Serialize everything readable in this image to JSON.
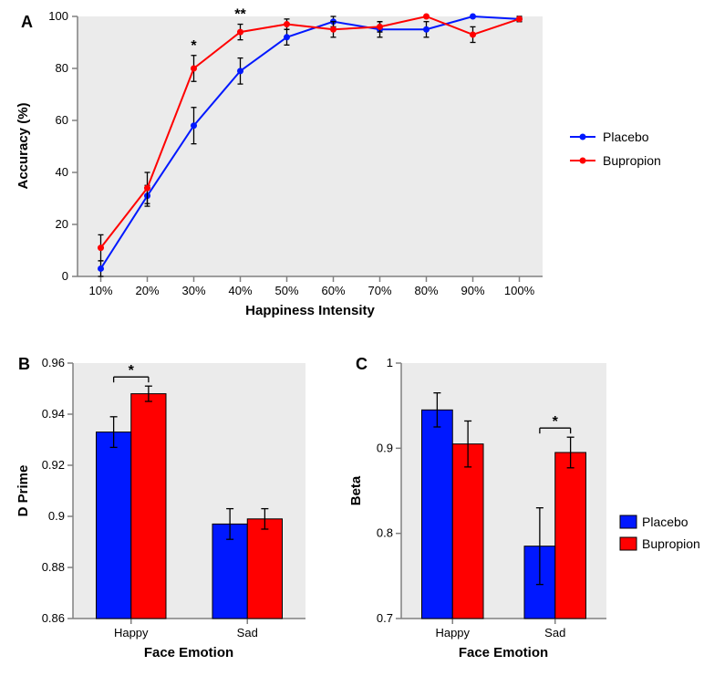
{
  "colors": {
    "placebo": "#0018ff",
    "bupropion": "#ff0000",
    "error_bar": "#000000",
    "axis": "#808080",
    "plot_bg": "#ebebeb",
    "page_bg": "#ffffff",
    "text": "#000000"
  },
  "panelA": {
    "letter": "A",
    "type": "line",
    "x_label": "Happiness Intensity",
    "y_label": "Accuracy (%)",
    "x_categories": [
      "10%",
      "20%",
      "30%",
      "40%",
      "50%",
      "60%",
      "70%",
      "80%",
      "90%",
      "100%"
    ],
    "y_lim": [
      0,
      100
    ],
    "y_ticks": [
      0,
      20,
      40,
      60,
      80,
      100
    ],
    "label_fontsize": 15,
    "tick_fontsize": 13,
    "marker_radius": 3.5,
    "line_width": 2,
    "series": [
      {
        "name": "Placebo",
        "color": "#0018ff",
        "y": [
          3,
          31,
          58,
          79,
          92,
          98,
          95,
          95,
          100,
          99
        ],
        "err": [
          3,
          4,
          7,
          5,
          3,
          2,
          3,
          3,
          0,
          1
        ]
      },
      {
        "name": "Bupropion",
        "color": "#ff0000",
        "y": [
          11,
          34,
          80,
          94,
          97,
          95,
          96,
          100,
          93,
          99
        ],
        "err": [
          5,
          6,
          5,
          3,
          2,
          3,
          2,
          0,
          3,
          1
        ]
      }
    ],
    "annotations": [
      {
        "x_index": 2,
        "text": "*"
      },
      {
        "x_index": 3,
        "text": "**"
      }
    ],
    "legend": {
      "items": [
        "Placebo",
        "Bupropion"
      ],
      "colors": [
        "#0018ff",
        "#ff0000"
      ]
    }
  },
  "panelB": {
    "letter": "B",
    "type": "bar",
    "x_label": "Face Emotion",
    "y_label": "D Prime",
    "x_categories": [
      "Happy",
      "Sad"
    ],
    "y_lim": [
      0.86,
      0.96
    ],
    "y_ticks": [
      0.86,
      0.88,
      0.9,
      0.92,
      0.94,
      0.96
    ],
    "label_fontsize": 15,
    "tick_fontsize": 13,
    "bar_group_width": 0.6,
    "series": [
      {
        "name": "Placebo",
        "color": "#0018ff",
        "y": [
          0.933,
          0.897
        ],
        "err": [
          0.006,
          0.006
        ]
      },
      {
        "name": "Bupropion",
        "color": "#ff0000",
        "y": [
          0.948,
          0.899
        ],
        "err": [
          0.003,
          0.004
        ]
      }
    ],
    "significance": [
      {
        "category_index": 0,
        "text": "*"
      }
    ]
  },
  "panelC": {
    "letter": "C",
    "type": "bar",
    "x_label": "Face Emotion",
    "y_label": "Beta",
    "x_categories": [
      "Happy",
      "Sad"
    ],
    "y_lim": [
      0.7,
      1.0
    ],
    "y_ticks": [
      0.7,
      0.8,
      0.9,
      1.0
    ],
    "label_fontsize": 15,
    "tick_fontsize": 13,
    "bar_group_width": 0.6,
    "series": [
      {
        "name": "Placebo",
        "color": "#0018ff",
        "y": [
          0.945,
          0.785
        ],
        "err": [
          0.02,
          0.045
        ]
      },
      {
        "name": "Bupropion",
        "color": "#ff0000",
        "y": [
          0.905,
          0.895
        ],
        "err": [
          0.027,
          0.018
        ]
      }
    ],
    "significance": [
      {
        "category_index": 1,
        "text": "*"
      }
    ],
    "legend": {
      "items": [
        "Placebo",
        "Bupropion"
      ],
      "colors": [
        "#0018ff",
        "#ff0000"
      ]
    }
  }
}
